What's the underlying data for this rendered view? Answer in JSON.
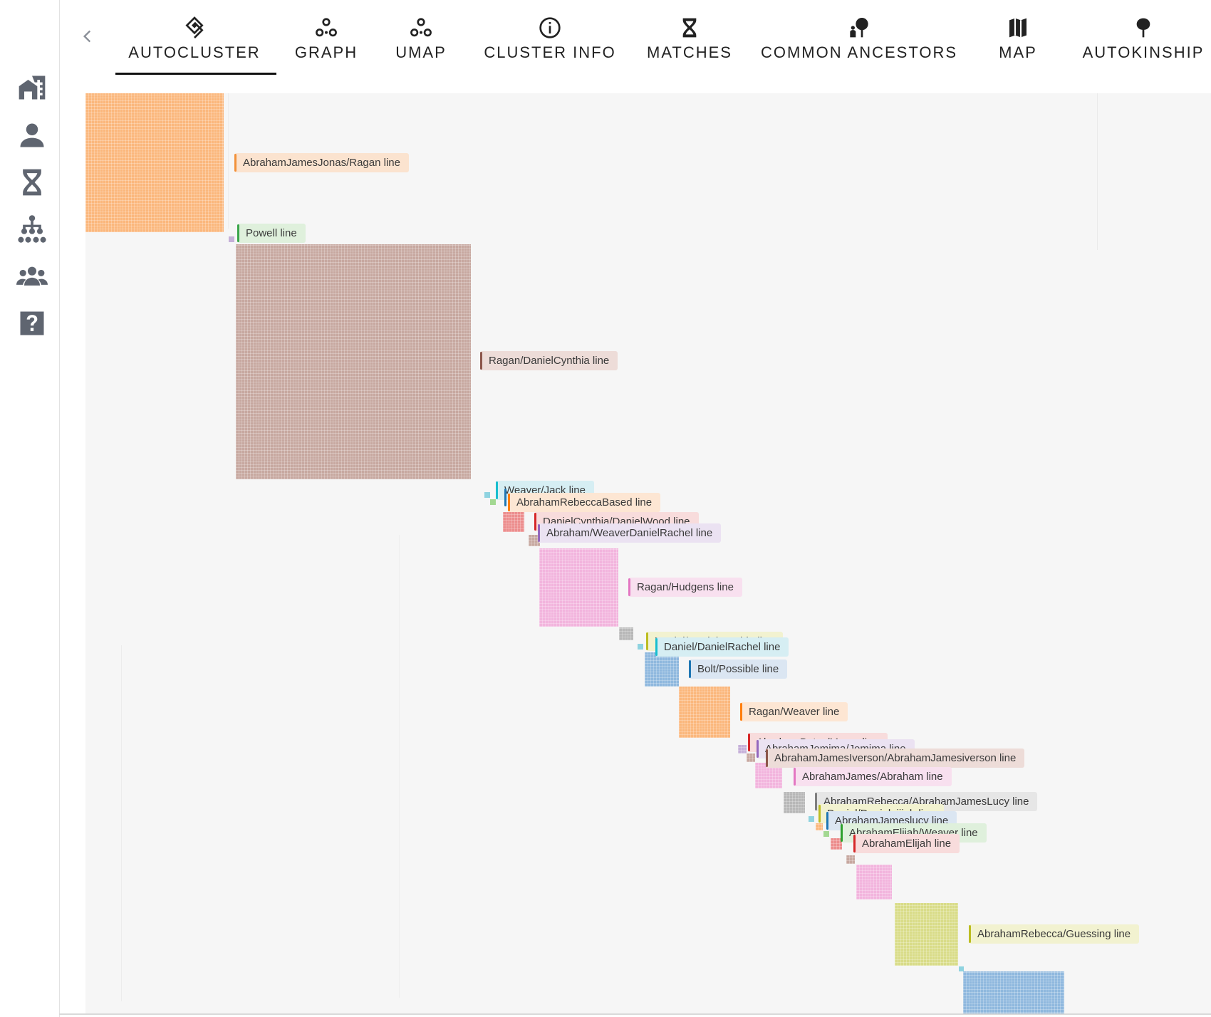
{
  "nav": {
    "back_icon": "chevron-left-icon",
    "sidebar_items": [
      {
        "name": "sidebar-item-dashboard",
        "icon": "building-icon"
      },
      {
        "name": "sidebar-item-profile",
        "icon": "person-icon"
      },
      {
        "name": "sidebar-item-dna",
        "icon": "dna-icon"
      },
      {
        "name": "sidebar-item-tree",
        "icon": "family-tree-icon"
      },
      {
        "name": "sidebar-item-groups",
        "icon": "people-group-icon"
      },
      {
        "name": "sidebar-item-help",
        "icon": "help-icon"
      }
    ]
  },
  "tabs": [
    {
      "label": "AUTOCLUSTER",
      "icon": "autocluster-icon",
      "active": true
    },
    {
      "label": "GRAPH",
      "icon": "graph-icon"
    },
    {
      "label": "UMAP",
      "icon": "umap-icon"
    },
    {
      "label": "CLUSTER INFO",
      "icon": "info-icon"
    },
    {
      "label": "MATCHES",
      "icon": "dna-icon"
    },
    {
      "label": "COMMON ANCESTORS",
      "icon": "ancestor-icon"
    },
    {
      "label": "MAP",
      "icon": "map-icon"
    },
    {
      "label": "AUTOKINSHIP",
      "icon": "tree-icon"
    }
  ],
  "colors": {
    "orange": "#fbb77c",
    "brown": "#c7a8a0",
    "pink": "#f2b4dd",
    "blue": "#8fb8de",
    "olive": "#d9dc88",
    "red": "#ec8d8d",
    "gray": "#b7b7b7",
    "lavender": "#c5b0d8",
    "cyan": "#8fd3e0",
    "green": "#a3d892"
  },
  "cluster_labels": [
    {
      "text": "AbrahamJamesJonas/Ragan line",
      "bar": "#f2913a",
      "bg": "#fbe3cf"
    },
    {
      "text": "Powell line",
      "bar": "#3aa54a",
      "bg": "#dff0dc"
    },
    {
      "text": "Ragan/DanielCynthia line",
      "bar": "#8c564b",
      "bg": "#eddcd8"
    },
    {
      "text": "Weaver/Jack line",
      "bar": "#17becf",
      "bg": "#d6eef3"
    },
    {
      "text": "Daniel line",
      "bar": "#1f77b4",
      "bg": "#dbe6f2"
    },
    {
      "text": "AbrahamRebeccaBased line",
      "bar": "#ff7f0e",
      "bg": "#fde6d3"
    },
    {
      "text": "DanielCynthia/DanielWood line",
      "bar": "#d62728",
      "bg": "#f8dcdc"
    },
    {
      "text": "Abraham/WeaverDanielRachel line",
      "bar": "#9467bd",
      "bg": "#ebe2f2"
    },
    {
      "text": "Ragan/Hudgens line",
      "bar": "#e377c2",
      "bg": "#f8e0ef"
    },
    {
      "text": "Daniel/DanielCynthia line",
      "bar": "#bcbd22",
      "bg": "#f2f2d0"
    },
    {
      "text": "Daniel/DanielRachel line",
      "bar": "#17becf",
      "bg": "#d6eef3"
    },
    {
      "text": "Bolt/Possible line",
      "bar": "#1f77b4",
      "bg": "#dbe6f2"
    },
    {
      "text": "Ragan/Weaver line",
      "bar": "#ff7f0e",
      "bg": "#fde6d3"
    },
    {
      "text": "AbrahamBetsy/Morse line",
      "bar": "#d62728",
      "bg": "#f8dcdc"
    },
    {
      "text": "AbrahamJemima/Jemima line",
      "bar": "#9467bd",
      "bg": "#ebe2f2"
    },
    {
      "text": "AbrahamJamesIverson/AbrahamJamesiverson line",
      "bar": "#8c564b",
      "bg": "#eddcd8"
    },
    {
      "text": "AbrahamJames/Abraham line",
      "bar": "#e377c2",
      "bg": "#f8e0ef"
    },
    {
      "text": "AbrahamRebecca/AbrahamJamesLucy line",
      "bar": "#7f7f7f",
      "bg": "#e6e6e6"
    },
    {
      "text": "Daniel/Danieleiijah line",
      "bar": "#bcbd22",
      "bg": "#f2f2d0"
    },
    {
      "text": "AbrahamJameslucy line",
      "bar": "#1f77b4",
      "bg": "#dbe6f2"
    },
    {
      "text": "AbrahamElijah/Weaver line",
      "bar": "#2ca02c",
      "bg": "#dff0dc"
    },
    {
      "text": "AbrahamElijah line",
      "bar": "#d62728",
      "bg": "#f8dcdc"
    },
    {
      "text": "AbrahamRebecca/Guessing line",
      "bar": "#bcbd22",
      "bg": "#f2f2d0"
    }
  ]
}
